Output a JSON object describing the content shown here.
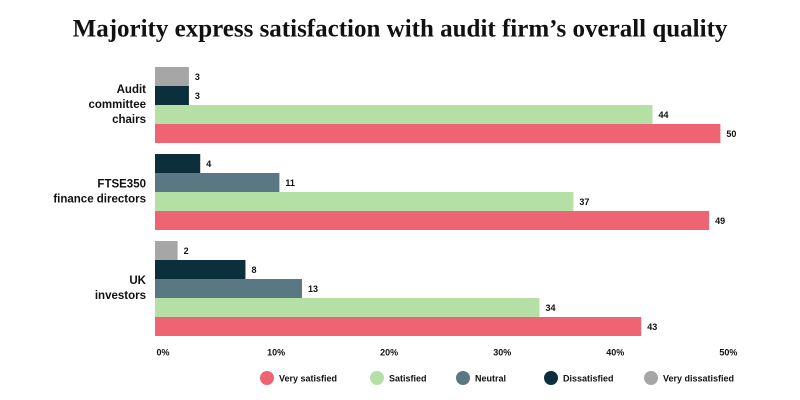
{
  "chart_data": {
    "type": "bar",
    "orientation": "horizontal",
    "title": "Majority express satisfaction with audit firm’s overall quality",
    "categories": [
      [
        "Audit",
        "committee",
        "chairs"
      ],
      [
        "FTSE350",
        "finance directors"
      ],
      [
        "UK",
        "investors"
      ]
    ],
    "series": [
      {
        "name": "Very satisfied",
        "color": "#ee6472",
        "values": [
          50,
          49,
          43
        ]
      },
      {
        "name": "Satisfied",
        "color": "#b4e0a6",
        "values": [
          44,
          37,
          34
        ]
      },
      {
        "name": "Neutral",
        "color": "#5a7883",
        "values": [
          null,
          11,
          13
        ]
      },
      {
        "name": "Dissatisfied",
        "color": "#0b2f3b",
        "values": [
          3,
          4,
          8
        ]
      },
      {
        "name": "Very dissatisfied",
        "color": "#a6a6a6",
        "values": [
          3,
          null,
          2
        ]
      }
    ],
    "xlim": [
      0,
      52
    ],
    "xticks": [
      {
        "value": 0,
        "label": "0%"
      },
      {
        "value": 10,
        "label": "10%"
      },
      {
        "value": 20,
        "label": "20%"
      },
      {
        "value": 30,
        "label": "30%"
      },
      {
        "value": 40,
        "label": "40%"
      },
      {
        "value": 50,
        "label": "50%"
      }
    ],
    "grid": false,
    "legend": "bottom"
  }
}
